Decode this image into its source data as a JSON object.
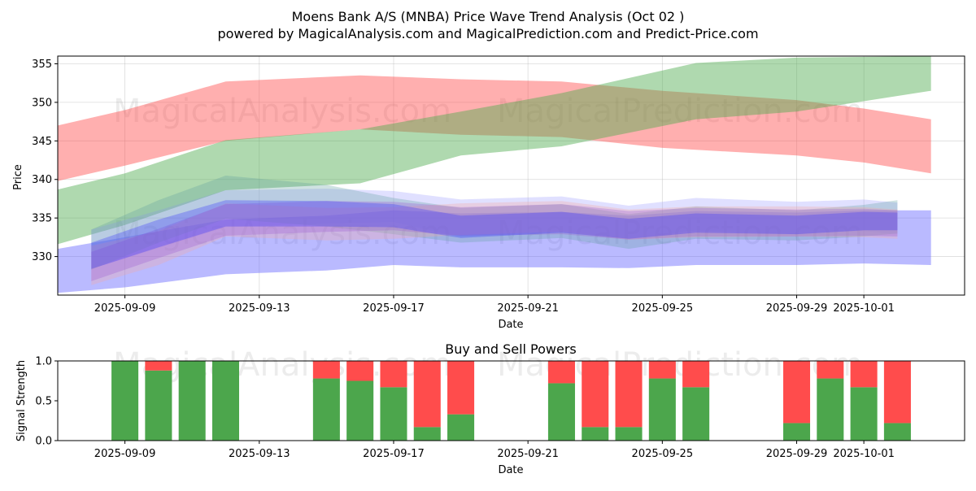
{
  "chart_data": [
    {
      "type": "area",
      "title": "Moens Bank A/S (MNBA) Price Wave Trend Analysis (Oct 02 )",
      "subtitle": "powered by MagicalAnalysis.com and MagicalPrediction.com and Predict-Price.com",
      "xlabel": "Date",
      "ylabel": "Price",
      "ylim": [
        325,
        356
      ],
      "yticks": [
        330,
        335,
        340,
        345,
        350,
        355
      ],
      "xlim": [
        "2025-09-07",
        "2025-10-04"
      ],
      "xticks": [
        "2025-09-09",
        "2025-09-13",
        "2025-09-17",
        "2025-09-21",
        "2025-09-25",
        "2025-09-29",
        "2025-10-01"
      ],
      "grid": true,
      "watermarks": [
        "MagicalAnalysis.com",
        "MagicalPrediction.com",
        "MagicalAnalysis.com",
        "MagicalPrediction.com"
      ],
      "series": [
        {
          "name": "red-band",
          "color": "#ff4d4d",
          "x": [
            "2025-09-07",
            "2025-09-09",
            "2025-09-12",
            "2025-09-16",
            "2025-09-19",
            "2025-09-22",
            "2025-09-25",
            "2025-09-29",
            "2025-10-01",
            "2025-10-03"
          ],
          "upper": [
            347,
            349,
            352.7,
            353.5,
            353,
            352.7,
            351.5,
            350.3,
            349.2,
            347.8
          ],
          "lower": [
            339.8,
            341.8,
            345,
            346.5,
            345.8,
            345.5,
            344.1,
            343.1,
            342.2,
            340.8
          ]
        },
        {
          "name": "green-band",
          "color": "#4dab4d",
          "x": [
            "2025-09-07",
            "2025-09-09",
            "2025-09-12",
            "2025-09-16",
            "2025-09-19",
            "2025-09-22",
            "2025-09-26",
            "2025-09-29",
            "2025-10-03"
          ],
          "upper": [
            338.7,
            340.8,
            345.1,
            346.5,
            348.8,
            351.2,
            355.1,
            355.8,
            356
          ],
          "lower": [
            331.6,
            334.1,
            338.6,
            339.5,
            343.1,
            344.3,
            347.8,
            348.8,
            351.5
          ]
        },
        {
          "name": "blue-band-wide",
          "color": "#6666ff",
          "x": [
            "2025-09-07",
            "2025-09-09",
            "2025-09-12",
            "2025-09-15",
            "2025-09-17",
            "2025-09-19",
            "2025-09-22",
            "2025-09-24",
            "2025-09-26",
            "2025-09-29",
            "2025-10-01",
            "2025-10-03"
          ],
          "upper": [
            331,
            332.5,
            334.8,
            335.3,
            336,
            335.6,
            335.8,
            335.3,
            335.9,
            335.7,
            336,
            336
          ],
          "lower": [
            325.3,
            326,
            327.7,
            328.2,
            328.9,
            328.6,
            328.6,
            328.5,
            328.9,
            328.9,
            329.1,
            328.9
          ]
        },
        {
          "name": "light-blue-band",
          "color": "#9999ff",
          "x": [
            "2025-09-08",
            "2025-09-10",
            "2025-09-12",
            "2025-09-15",
            "2025-09-17",
            "2025-09-19",
            "2025-09-22",
            "2025-09-24",
            "2025-09-26",
            "2025-09-29",
            "2025-10-01",
            "2025-10-02"
          ],
          "upper": [
            333.5,
            336,
            338.6,
            338.8,
            338.5,
            337.4,
            337.8,
            336.6,
            337.6,
            337.1,
            337.4,
            337
          ],
          "lower": [
            328.4,
            331.1,
            333.8,
            334.3,
            334.5,
            332.5,
            333.3,
            332.3,
            333.4,
            332.9,
            333.3,
            332.9
          ]
        },
        {
          "name": "teal-band",
          "color": "#5f9ea0",
          "x": [
            "2025-09-08",
            "2025-09-10",
            "2025-09-12",
            "2025-09-15",
            "2025-09-17",
            "2025-09-19",
            "2025-09-22",
            "2025-09-24",
            "2025-09-26",
            "2025-09-29",
            "2025-10-01",
            "2025-10-02"
          ],
          "upper": [
            333.5,
            337.3,
            340.5,
            339.3,
            337.6,
            336.3,
            336.8,
            335.5,
            336.5,
            336,
            336.7,
            337.3
          ],
          "lower": [
            328.3,
            331.8,
            334.9,
            333.9,
            332.9,
            331.8,
            332.4,
            331,
            332.3,
            332.1,
            332.6,
            333
          ]
        },
        {
          "name": "salmon-band",
          "color": "#f4a6a0",
          "x": [
            "2025-09-08",
            "2025-09-10",
            "2025-09-12",
            "2025-09-15",
            "2025-09-17",
            "2025-09-19",
            "2025-09-22",
            "2025-09-24",
            "2025-09-26",
            "2025-09-29",
            "2025-10-01",
            "2025-10-02"
          ],
          "upper": [
            331.4,
            333.3,
            336.9,
            336.3,
            336.4,
            336.9,
            337.2,
            336.1,
            336.5,
            336.5,
            336.4,
            336.1
          ],
          "lower": [
            326.3,
            328.9,
            332.6,
            332.1,
            332.3,
            332.8,
            333.2,
            332.2,
            332.5,
            332.6,
            332.5,
            332.3
          ]
        },
        {
          "name": "purple-band",
          "color": "#9b59d0",
          "x": [
            "2025-09-08",
            "2025-09-10",
            "2025-09-12",
            "2025-09-15",
            "2025-09-17",
            "2025-09-19",
            "2025-09-22",
            "2025-09-24",
            "2025-09-26",
            "2025-09-29",
            "2025-10-01",
            "2025-10-02"
          ],
          "upper": [
            330.6,
            333.6,
            336.8,
            337.2,
            337.1,
            336.4,
            336.8,
            335.9,
            336.3,
            336.1,
            336.2,
            336
          ],
          "lower": [
            326.8,
            329.8,
            332.7,
            333.2,
            333.4,
            332.7,
            332.9,
            332.2,
            332.6,
            332.6,
            332.7,
            332.6
          ]
        },
        {
          "name": "blue-band-core",
          "color": "#3333ff",
          "x": [
            "2025-09-08",
            "2025-09-10",
            "2025-09-12",
            "2025-09-15",
            "2025-09-17",
            "2025-09-19",
            "2025-09-22",
            "2025-09-24",
            "2025-09-26",
            "2025-09-29",
            "2025-10-01",
            "2025-10-02"
          ],
          "upper": [
            331.8,
            334.8,
            337.3,
            337.2,
            336.8,
            335.3,
            335.8,
            334.9,
            335.6,
            335.3,
            335.8,
            335.7
          ],
          "lower": [
            328.4,
            331.2,
            333.9,
            333.9,
            333.8,
            332.4,
            333.1,
            332.3,
            333.1,
            332.9,
            333.4,
            333.4
          ]
        }
      ]
    },
    {
      "type": "bar",
      "title": "Buy and Sell Powers",
      "xlabel": "Date",
      "ylabel": "Signal Strength",
      "ylim": [
        0,
        1
      ],
      "yticks": [
        "0.0",
        "0.5",
        "1.0"
      ],
      "xticks": [
        "2025-09-09",
        "2025-09-13",
        "2025-09-17",
        "2025-09-21",
        "2025-09-25",
        "2025-09-29",
        "2025-10-01"
      ],
      "grid": false,
      "colors": {
        "buy": "#4ca64c",
        "sell": "#ff4c4c"
      },
      "bars": [
        {
          "date": "2025-09-09",
          "buy": 1.0
        },
        {
          "date": "2025-09-10",
          "buy": 0.88
        },
        {
          "date": "2025-09-11",
          "buy": 1.0
        },
        {
          "date": "2025-09-12",
          "buy": 1.0
        },
        {
          "date": "2025-09-15",
          "buy": 0.78
        },
        {
          "date": "2025-09-16",
          "buy": 0.75
        },
        {
          "date": "2025-09-17",
          "buy": 0.67
        },
        {
          "date": "2025-09-18",
          "buy": 0.17
        },
        {
          "date": "2025-09-19",
          "buy": 0.33
        },
        {
          "date": "2025-09-22",
          "buy": 0.72
        },
        {
          "date": "2025-09-23",
          "buy": 0.17
        },
        {
          "date": "2025-09-24",
          "buy": 0.17
        },
        {
          "date": "2025-09-25",
          "buy": 0.78
        },
        {
          "date": "2025-09-26",
          "buy": 0.67
        },
        {
          "date": "2025-09-29",
          "buy": 0.22
        },
        {
          "date": "2025-09-30",
          "buy": 0.78
        },
        {
          "date": "2025-10-01",
          "buy": 0.67
        },
        {
          "date": "2025-10-02",
          "buy": 0.22
        }
      ],
      "watermarks": [
        "MagicalAnalysis.com",
        "MagicalPrediction.com"
      ]
    }
  ]
}
